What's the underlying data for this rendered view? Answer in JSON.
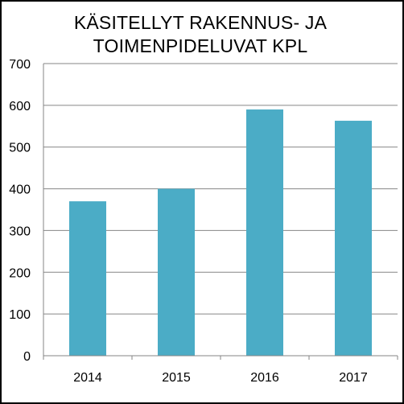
{
  "chart_data": {
    "type": "bar",
    "title_lines": [
      "KÄSITELLYT RAKENNUS- JA",
      "TOIMENPIDELUVAT KPL"
    ],
    "categories": [
      "2014",
      "2015",
      "2016",
      "2017"
    ],
    "values": [
      370,
      400,
      590,
      563
    ],
    "ylim": [
      0,
      700
    ],
    "yticks": [
      "0",
      "100",
      "200",
      "300",
      "400",
      "500",
      "600",
      "700"
    ],
    "grid": true,
    "legend": "none",
    "bar_color": "#4bacc6",
    "grid_color": "#868686"
  }
}
